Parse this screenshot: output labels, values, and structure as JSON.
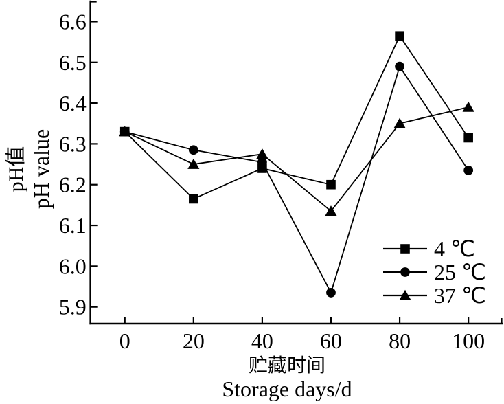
{
  "chart_data": {
    "type": "line",
    "title": "",
    "x": [
      0,
      20,
      40,
      60,
      80,
      100
    ],
    "series": [
      {
        "name": "4 ℃",
        "marker": "square",
        "values": [
          6.33,
          6.165,
          6.24,
          6.2,
          6.565,
          6.315
        ]
      },
      {
        "name": "25 ℃",
        "marker": "circle",
        "values": [
          6.33,
          6.285,
          6.255,
          5.935,
          6.49,
          6.235
        ]
      },
      {
        "name": "37 ℃",
        "marker": "triangle",
        "values": [
          6.33,
          6.25,
          6.275,
          6.135,
          6.35,
          6.39
        ]
      }
    ],
    "xlabel_zh": "贮藏时间",
    "xlabel_en": "Storage days/d",
    "ylabel_zh": "pH值",
    "ylabel_en": "pH value",
    "x_ticks": [
      0,
      20,
      40,
      60,
      80,
      100
    ],
    "x_tick_labels": [
      "0",
      "20",
      "40",
      "60",
      "80",
      "100"
    ],
    "y_ticks": [
      5.9,
      6.0,
      6.1,
      6.2,
      6.3,
      6.4,
      6.5,
      6.6
    ],
    "y_tick_labels": [
      "5.9",
      "6.0",
      "6.1",
      "6.2",
      "6.3",
      "6.4",
      "6.5",
      "6.6"
    ],
    "xlim": [
      -10,
      110
    ],
    "ylim": [
      5.859,
      6.653
    ],
    "grid": false,
    "legend_position": "lower-right",
    "colors": {
      "line": "#000000",
      "marker": "#000000",
      "text": "#000000",
      "background": "#ffffff"
    }
  }
}
